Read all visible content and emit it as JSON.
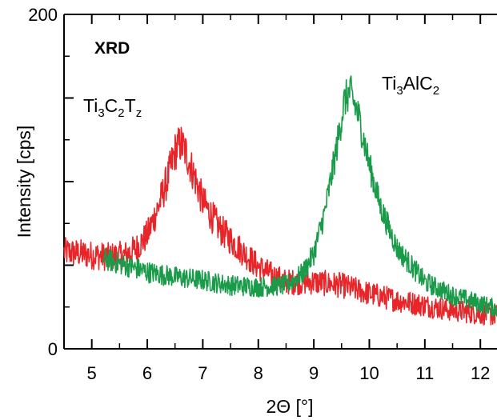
{
  "chart_data": {
    "type": "line",
    "xlabel": "2Θ [°]",
    "ylabel": "Intensity [cps]",
    "xlim": [
      4.5,
      12.3
    ],
    "ylim": [
      0,
      200
    ],
    "x_ticks": [
      5,
      6,
      7,
      8,
      9,
      10,
      11,
      12
    ],
    "x_minor_ticks": [
      4.5,
      5.5,
      6.5,
      7.5,
      8.5,
      9.5,
      10.5,
      11.5
    ],
    "y_tick_labels": [
      {
        "value": 0,
        "label": "0"
      },
      {
        "value": 200,
        "label": "200"
      }
    ],
    "y_major_ticks": [
      0,
      50,
      100,
      150,
      200
    ],
    "y_minor_ticks": [
      25,
      75,
      125,
      175
    ],
    "annotations": {
      "xrd": "XRD",
      "ti3c2tz": {
        "el1": "Ti",
        "n1": "3",
        "el2": "C",
        "n2": "2",
        "el3": "T",
        "n3": "z"
      },
      "ti3alc2": {
        "el1": "Ti",
        "n1": "3",
        "el2": "AlC",
        "n2": "2"
      }
    },
    "series": [
      {
        "name": "Ti3C2Tz",
        "color": "#e8262a",
        "noise": 10,
        "points": [
          [
            4.5,
            58
          ],
          [
            4.8,
            57
          ],
          [
            5.0,
            56
          ],
          [
            5.3,
            55
          ],
          [
            5.6,
            56
          ],
          [
            5.8,
            60
          ],
          [
            6.0,
            68
          ],
          [
            6.2,
            85
          ],
          [
            6.35,
            100
          ],
          [
            6.5,
            118
          ],
          [
            6.6,
            123
          ],
          [
            6.7,
            117
          ],
          [
            6.85,
            103
          ],
          [
            7.0,
            88
          ],
          [
            7.3,
            72
          ],
          [
            7.6,
            62
          ],
          [
            8.0,
            49
          ],
          [
            8.3,
            43
          ],
          [
            8.5,
            40
          ],
          [
            9.0,
            40
          ],
          [
            9.5,
            38
          ],
          [
            10.0,
            33
          ],
          [
            10.5,
            29
          ],
          [
            11.0,
            26
          ],
          [
            11.5,
            23
          ],
          [
            12.0,
            21
          ],
          [
            12.3,
            20
          ]
        ]
      },
      {
        "name": "Ti3AlC2",
        "color": "#1a9b4a",
        "noise": 8,
        "points": [
          [
            5.2,
            54
          ],
          [
            5.5,
            51
          ],
          [
            6.0,
            46
          ],
          [
            6.5,
            43
          ],
          [
            7.0,
            41
          ],
          [
            7.5,
            38
          ],
          [
            8.0,
            37
          ],
          [
            8.5,
            38
          ],
          [
            8.8,
            45
          ],
          [
            9.0,
            57
          ],
          [
            9.2,
            82
          ],
          [
            9.4,
            118
          ],
          [
            9.55,
            148
          ],
          [
            9.65,
            154
          ],
          [
            9.8,
            140
          ],
          [
            10.0,
            110
          ],
          [
            10.2,
            85
          ],
          [
            10.5,
            60
          ],
          [
            11.0,
            40
          ],
          [
            11.5,
            32
          ],
          [
            12.0,
            27
          ],
          [
            12.3,
            24
          ]
        ]
      }
    ]
  }
}
